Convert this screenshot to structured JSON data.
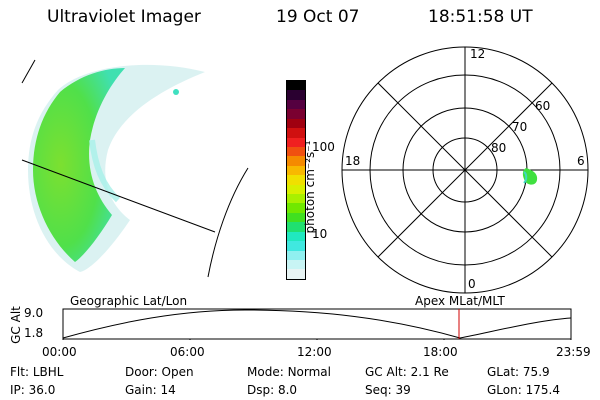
{
  "header": {
    "title": "Ultraviolet Imager",
    "date": "19 Oct 07",
    "time": "18:51:58 UT"
  },
  "colorbar": {
    "unit_label": "photon cm⁻²s⁻¹",
    "ticks": [
      "100",
      "10"
    ],
    "colors": [
      "#000000",
      "#2a0030",
      "#550040",
      "#7a0030",
      "#a00010",
      "#d01010",
      "#f02020",
      "#f05010",
      "#f58a00",
      "#f8b800",
      "#f0e000",
      "#d8f000",
      "#a8f000",
      "#70e800",
      "#40e020",
      "#20e070",
      "#20e8c0",
      "#40e8e0",
      "#90f0f0",
      "#c8f4f4",
      "#e8f4f4"
    ]
  },
  "polar": {
    "mlt_labels": [
      "12",
      "18",
      "6",
      "0"
    ],
    "lat_labels": [
      "60",
      "70",
      "80"
    ]
  },
  "timeline": {
    "left_label": "Geographic Lat/Lon",
    "right_label": "Apex MLat/MLT",
    "axis_title": "GC Alt",
    "y_ticks": [
      "9.0",
      "1.8"
    ],
    "x_ticks": [
      "00:00",
      "06:00",
      "12:00",
      "18:00",
      "23:59"
    ],
    "current_time_color": "#d00000"
  },
  "status": {
    "row1": [
      {
        "label": "Flt:",
        "value": "LBHL"
      },
      {
        "label": "Door:",
        "value": "Open"
      },
      {
        "label": "Mode:",
        "value": "Normal"
      },
      {
        "label": "GC Alt:",
        "value": "2.1 Re"
      },
      {
        "label": "GLat:",
        "value": "75.9"
      }
    ],
    "row2": [
      {
        "label": "IP:",
        "value": "36.0"
      },
      {
        "label": "Gain:",
        "value": "14"
      },
      {
        "label": "Dsp:",
        "value": "8.0"
      },
      {
        "label": "Seq:",
        "value": "39"
      },
      {
        "label": "GLon:",
        "value": "175.4"
      }
    ]
  }
}
